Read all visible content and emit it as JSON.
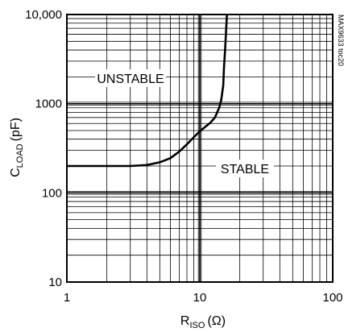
{
  "chart_data": {
    "type": "line",
    "title": "",
    "xlabel": "RISO (Ω)",
    "xlabel_main": "R",
    "xlabel_sub": "ISO",
    "xlabel_unit": "(Ω)",
    "ylabel": "CLOAD (pF)",
    "ylabel_main": "C",
    "ylabel_sub": "LOAD",
    "ylabel_unit": "(pF)",
    "x_scale": "log",
    "y_scale": "log",
    "xlim": [
      1,
      100
    ],
    "ylim": [
      10,
      10000
    ],
    "x_ticks": [
      1,
      10,
      100
    ],
    "x_tick_labels": [
      "1",
      "10",
      "100"
    ],
    "y_ticks": [
      10,
      100,
      1000,
      10000
    ],
    "y_tick_labels": [
      "10",
      "100",
      "1000",
      "10,000"
    ],
    "grid": true,
    "series": [
      {
        "x": [
          1,
          2,
          3,
          4,
          5,
          6,
          7,
          8,
          9,
          10,
          11,
          12,
          13,
          14,
          14.5,
          15,
          15.2,
          15.5,
          15.8,
          16
        ],
        "y": [
          200,
          200,
          200,
          205,
          220,
          245,
          290,
          350,
          420,
          490,
          550,
          610,
          700,
          900,
          1100,
          1600,
          2500,
          4000,
          7000,
          10000
        ]
      }
    ],
    "annotations": {
      "unstable": "UNSTABLE",
      "stable": "STABLE",
      "code": "MAX9633 toc20"
    }
  }
}
